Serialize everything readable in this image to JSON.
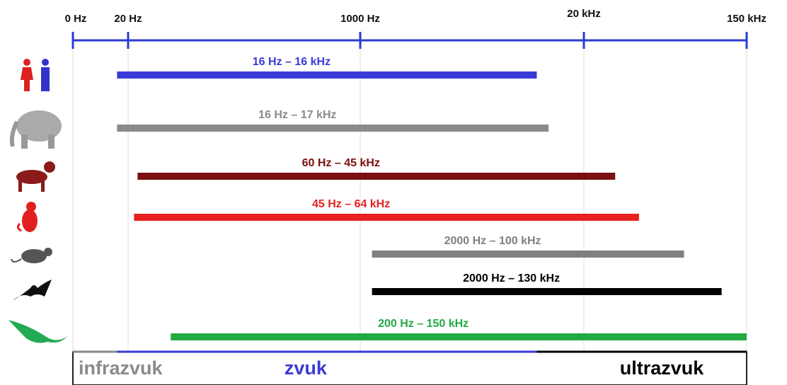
{
  "chart_data": {
    "type": "range_bar",
    "scale": "piecewise",
    "xlim": [
      0,
      150000
    ],
    "xticks": [
      {
        "value": 0,
        "label": "0 Hz"
      },
      {
        "value": 20,
        "label": "20 Hz"
      },
      {
        "value": 1000,
        "label": "1000 Hz"
      },
      {
        "value": 20000,
        "label": "20 kHz"
      },
      {
        "value": 150000,
        "label": "150 kHz"
      }
    ],
    "axis_color": "#2b3bd0",
    "grid": true,
    "ranges": [
      {
        "label": "16 Hz  –  16 kHz",
        "color": "#3a3ad8",
        "low": 16,
        "high": 16000
      },
      {
        "label": "16 Hz – 17 kHz",
        "color": "#8a8a8a",
        "low": 16,
        "high": 17000
      },
      {
        "label": "60 Hz – 45 kHz",
        "color": "#7a1010",
        "low": 60,
        "high": 45000
      },
      {
        "label": "45 Hz – 64 kHz",
        "color": "#e82020",
        "low": 45,
        "high": 64000
      },
      {
        "label": "2000 Hz – 100 kHz",
        "color": "#808080",
        "low": 2000,
        "high": 100000
      },
      {
        "label": "2000 Hz – 130 kHz",
        "color": "#000000",
        "low": 2000,
        "high": 130000
      },
      {
        "label": "200 Hz – 150 kHz",
        "color": "#22aa44",
        "low": 200,
        "high": 150000
      }
    ],
    "regions": [
      {
        "label": "infrazvuk",
        "color": "#8a8a8a",
        "from": 0,
        "to": 16
      },
      {
        "label": "zvuk",
        "color": "#3a3ad8",
        "from": 16,
        "to": 16000
      },
      {
        "label": "ultrazvuk",
        "color": "#000000",
        "from": 16000,
        "to": 150000
      }
    ]
  }
}
